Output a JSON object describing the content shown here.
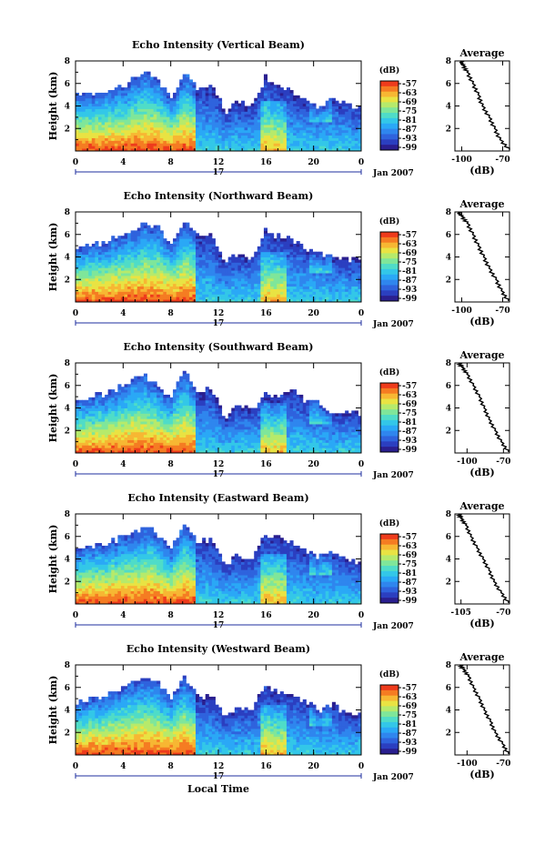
{
  "colors": {
    "scale": [
      "#2a1f8f",
      "#2b3fc0",
      "#2f63dd",
      "#2f86ee",
      "#2aa8f6",
      "#33c7e8",
      "#4fdcc8",
      "#7fe69a",
      "#b6ea6b",
      "#e9e343",
      "#f7b733",
      "#f57c22",
      "#ee3b1c"
    ],
    "axis": "#000000",
    "date_line": "#1f2f9f"
  },
  "date_label": "Jan 2007",
  "day_label": "17",
  "xlabel_bottom": "Local Time",
  "avg_title": "Average",
  "avg_xlabel": "(dB)",
  "cbar_unit": "(dB)",
  "chart_data": [
    {
      "type": "heatmap",
      "title": "Echo Intensity (Vertical Beam)",
      "xlabel": "",
      "ylabel": "Height (km)",
      "xlim": [
        0,
        24
      ],
      "ylim": [
        0,
        8
      ],
      "x_ticks": [
        "0",
        "4",
        "8",
        "12",
        "16",
        "20",
        "0"
      ],
      "y_ticks": [
        "2",
        "4",
        "6",
        "8"
      ],
      "colorbar": {
        "unit": "(dB)",
        "ticks": [
          "-57",
          "-63",
          "-69",
          "-75",
          "-81",
          "-87",
          "-93",
          "-99"
        ],
        "range": [
          -99,
          -57
        ]
      },
      "top_km": [
        5.0,
        5.1,
        5.3,
        5.6,
        6.2,
        7.2,
        6.4,
        4.8,
        7.0,
        5.4,
        6.0,
        3.4,
        4.6,
        3.8,
        6.6,
        5.8,
        5.2,
        4.6,
        4.0,
        4.6,
        4.3,
        3.8
      ],
      "average": {
        "xlim": [
          -105,
          -65
        ],
        "x_ticks": [
          "-100",
          "-70"
        ],
        "y_ticks": [
          "2",
          "4",
          "6",
          "8"
        ],
        "profile": [
          [
            -65,
            0.1
          ],
          [
            -72,
            1.0
          ],
          [
            -76,
            2.0
          ],
          [
            -80,
            3.0
          ],
          [
            -85,
            4.0
          ],
          [
            -88,
            5.0
          ],
          [
            -92,
            6.0
          ],
          [
            -96,
            7.0
          ],
          [
            -99,
            7.6
          ],
          [
            -101,
            8.0
          ]
        ]
      }
    },
    {
      "type": "heatmap",
      "title": "Echo Intensity (Northward Beam)",
      "xlabel": "",
      "ylabel": "Height (km)",
      "xlim": [
        0,
        24
      ],
      "ylim": [
        0,
        8
      ],
      "x_ticks": [
        "0",
        "4",
        "8",
        "12",
        "16",
        "20",
        "0"
      ],
      "y_ticks": [
        "2",
        "4",
        "6",
        "8"
      ],
      "colorbar": {
        "unit": "(dB)",
        "ticks": [
          "-57",
          "-63",
          "-69",
          "-75",
          "-81",
          "-87",
          "-93",
          "-99"
        ],
        "range": [
          -99,
          -57
        ]
      },
      "top_km": [
        4.8,
        5.0,
        5.4,
        5.8,
        6.2,
        7.0,
        6.6,
        5.0,
        7.2,
        5.8,
        5.8,
        3.4,
        4.4,
        4.0,
        6.4,
        5.8,
        5.6,
        4.8,
        4.4,
        4.0,
        3.8,
        3.8
      ],
      "average": {
        "xlim": [
          -105,
          -65
        ],
        "x_ticks": [
          "-100",
          "-70"
        ],
        "y_ticks": [
          "2",
          "4",
          "6",
          "8"
        ],
        "profile": [
          [
            -66,
            0.1
          ],
          [
            -71,
            1.0
          ],
          [
            -75,
            2.0
          ],
          [
            -80,
            3.0
          ],
          [
            -84,
            4.0
          ],
          [
            -88,
            5.0
          ],
          [
            -92,
            6.0
          ],
          [
            -96,
            7.0
          ],
          [
            -100,
            7.6
          ],
          [
            -103,
            8.0
          ]
        ]
      }
    },
    {
      "type": "heatmap",
      "title": "Echo Intensity (Southward Beam)",
      "xlabel": "",
      "ylabel": "Height (km)",
      "xlim": [
        0,
        24
      ],
      "ylim": [
        0,
        8
      ],
      "x_ticks": [
        "0",
        "4",
        "8",
        "12",
        "16",
        "20",
        "0"
      ],
      "y_ticks": [
        "2",
        "4",
        "6",
        "8"
      ],
      "colorbar": {
        "unit": "(dB)",
        "ticks": [
          "-57",
          "-63",
          "-69",
          "-75",
          "-81",
          "-87",
          "-93",
          "-99"
        ],
        "range": [
          -99,
          -57
        ]
      },
      "top_km": [
        4.8,
        5.0,
        5.2,
        5.8,
        6.4,
        7.0,
        6.0,
        5.0,
        7.2,
        5.4,
        5.8,
        3.0,
        4.4,
        3.8,
        5.4,
        5.0,
        5.8,
        4.6,
        4.4,
        3.6,
        3.8,
        3.4
      ],
      "average": {
        "xlim": [
          -110,
          -65
        ],
        "x_ticks": [
          "-100",
          "-70"
        ],
        "y_ticks": [
          "2",
          "4",
          "6",
          "8"
        ],
        "profile": [
          [
            -66,
            0.1
          ],
          [
            -72,
            1.0
          ],
          [
            -77,
            2.0
          ],
          [
            -82,
            3.0
          ],
          [
            -86,
            4.0
          ],
          [
            -90,
            5.0
          ],
          [
            -95,
            6.0
          ],
          [
            -100,
            7.0
          ],
          [
            -104,
            7.6
          ],
          [
            -107,
            8.0
          ]
        ]
      }
    },
    {
      "type": "heatmap",
      "title": "Echo Intensity (Eastward Beam)",
      "xlabel": "",
      "ylabel": "Height (km)",
      "xlim": [
        0,
        24
      ],
      "ylim": [
        0,
        8
      ],
      "x_ticks": [
        "0",
        "4",
        "8",
        "12",
        "16",
        "20",
        "0"
      ],
      "y_ticks": [
        "2",
        "4",
        "6",
        "8"
      ],
      "colorbar": {
        "unit": "(dB)",
        "ticks": [
          "-57",
          "-63",
          "-69",
          "-75",
          "-81",
          "-87",
          "-93",
          "-99"
        ],
        "range": [
          -99,
          -57
        ]
      },
      "top_km": [
        4.8,
        5.0,
        5.4,
        5.8,
        6.2,
        7.0,
        6.2,
        5.0,
        7.2,
        5.6,
        5.8,
        3.6,
        4.4,
        4.0,
        6.2,
        5.8,
        5.4,
        4.8,
        4.2,
        4.6,
        4.0,
        3.6
      ],
      "average": {
        "xlim": [
          -110,
          -65
        ],
        "x_ticks": [
          "-105",
          "-70"
        ],
        "y_ticks": [
          "2",
          "4",
          "6",
          "8"
        ],
        "profile": [
          [
            -66,
            0.1
          ],
          [
            -72,
            1.0
          ],
          [
            -78,
            2.0
          ],
          [
            -82,
            3.0
          ],
          [
            -87,
            4.0
          ],
          [
            -92,
            5.0
          ],
          [
            -97,
            6.0
          ],
          [
            -101,
            7.0
          ],
          [
            -105,
            7.6
          ],
          [
            -107,
            8.0
          ]
        ]
      }
    },
    {
      "type": "heatmap",
      "title": "Echo Intensity (Westward Beam)",
      "xlabel": "Local Time",
      "ylabel": "Height (km)",
      "xlim": [
        0,
        24
      ],
      "ylim": [
        0,
        8
      ],
      "x_ticks": [
        "0",
        "4",
        "8",
        "12",
        "16",
        "20",
        "0"
      ],
      "y_ticks": [
        "2",
        "4",
        "6",
        "8"
      ],
      "colorbar": {
        "unit": "(dB)",
        "ticks": [
          "-57",
          "-63",
          "-69",
          "-75",
          "-81",
          "-87",
          "-93",
          "-99"
        ],
        "range": [
          -99,
          -57
        ]
      },
      "top_km": [
        4.6,
        5.0,
        5.4,
        5.8,
        6.4,
        7.0,
        6.4,
        5.0,
        7.0,
        5.2,
        5.4,
        3.4,
        4.2,
        4.0,
        6.2,
        5.6,
        5.4,
        4.8,
        4.0,
        4.4,
        3.8,
        3.6
      ],
      "average": {
        "xlim": [
          -110,
          -65
        ],
        "x_ticks": [
          "-100",
          "-70"
        ],
        "y_ticks": [
          "2",
          "4",
          "6",
          "8"
        ],
        "profile": [
          [
            -66,
            0.1
          ],
          [
            -71,
            1.0
          ],
          [
            -77,
            2.0
          ],
          [
            -81,
            3.0
          ],
          [
            -86,
            4.0
          ],
          [
            -90,
            5.0
          ],
          [
            -95,
            6.0
          ],
          [
            -99,
            7.0
          ],
          [
            -103,
            7.6
          ],
          [
            -106,
            8.0
          ]
        ]
      }
    }
  ]
}
